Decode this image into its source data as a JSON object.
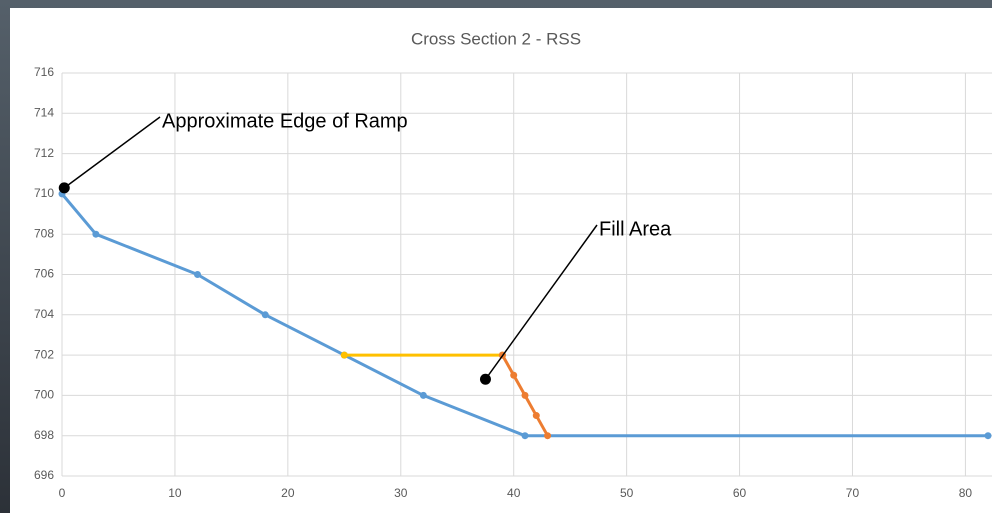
{
  "chart_data": {
    "type": "line",
    "title": "Cross Section 2 - RSS",
    "xlim": [
      0,
      82
    ],
    "xticks": [
      0,
      10,
      20,
      30,
      40,
      50,
      60,
      70,
      80
    ],
    "ylim": [
      696,
      716
    ],
    "yticks": [
      696,
      698,
      700,
      702,
      704,
      706,
      708,
      710,
      712,
      714,
      716
    ],
    "grid": true,
    "series": [
      {
        "color": "#5b9bd5",
        "x": [
          0,
          3,
          12,
          18,
          25,
          32,
          41,
          82
        ],
        "values": [
          710,
          708,
          706,
          704,
          702,
          700,
          698,
          698
        ]
      },
      {
        "color": "#ffc000",
        "x": [
          25,
          39
        ],
        "values": [
          702,
          702
        ]
      },
      {
        "color": "#ed7d31",
        "x": [
          39,
          40,
          41,
          42,
          43
        ],
        "values": [
          702,
          701,
          700,
          699,
          698
        ]
      }
    ],
    "annotations": [
      {
        "text": "Approximate Edge of Ramp",
        "x": 0.2,
        "y": 710.3
      },
      {
        "text": "Fill Area",
        "x": 37.5,
        "y": 700.8
      }
    ]
  }
}
